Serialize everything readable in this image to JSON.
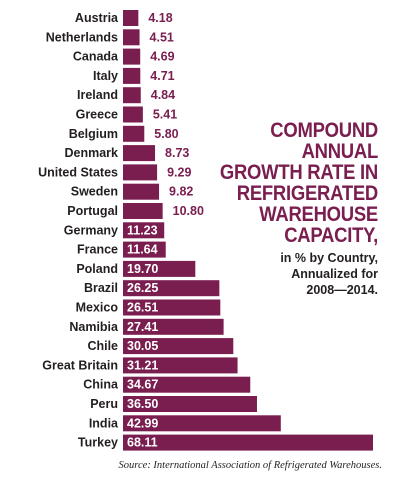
{
  "title": {
    "lines": [
      "COMPOUND",
      "ANNUAL",
      "GROWTH RATE IN",
      "REFRIGERATED",
      "WAREHOUSE",
      "CAPACITY,"
    ]
  },
  "subtitle": {
    "lines": [
      "in % by Country,",
      "Annualized for",
      "2008—2014."
    ]
  },
  "source": "Source: International Association of Refrigerated Warehouses.",
  "colors": {
    "bar": "#7a1d4f",
    "label": "#231f20",
    "value_inside": "#ffffff"
  },
  "chart_data": {
    "type": "bar",
    "orientation": "horizontal",
    "categories": [
      "Austria",
      "Netherlands",
      "Canada",
      "Italy",
      "Ireland",
      "Greece",
      "Belgium",
      "Denmark",
      "United States",
      "Sweden",
      "Portugal",
      "Germany",
      "France",
      "Poland",
      "Brazil",
      "Mexico",
      "Namibia",
      "Chile",
      "Great Britain",
      "China",
      "Peru",
      "India",
      "Turkey"
    ],
    "values": [
      4.18,
      4.51,
      4.69,
      4.71,
      4.84,
      5.41,
      5.8,
      8.73,
      9.29,
      9.82,
      10.8,
      11.23,
      11.64,
      19.7,
      26.25,
      26.51,
      27.41,
      30.05,
      31.21,
      34.67,
      36.5,
      42.99,
      68.11
    ],
    "value_labels": [
      "4.18",
      "4.51",
      "4.69",
      "4.71",
      "4.84",
      "5.41",
      "5.80",
      "8.73",
      "9.29",
      "9.82",
      "10.80",
      "11.23",
      "11.64",
      "19.70",
      "26.25",
      "26.51",
      "27.41",
      "30.05",
      "31.21",
      "34.67",
      "36.50",
      "42.99",
      "68.11"
    ],
    "xlim": [
      0,
      68.11
    ],
    "grid": false,
    "legend": "none"
  }
}
